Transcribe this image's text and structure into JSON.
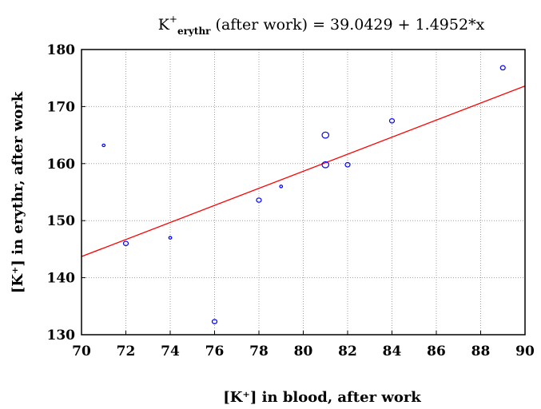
{
  "chart_data": {
    "type": "scatter",
    "title": {
      "main": "K",
      "sup": "+",
      "sub": "erythr",
      "rest": " (after work) = 39.0429 +  1.4952*x"
    },
    "xlabel": "[K⁺] in blood, after work",
    "ylabel": "[K⁺] in erythr, after work",
    "xlim": [
      70,
      90
    ],
    "ylim": [
      130,
      180
    ],
    "xticks": [
      "70",
      "72",
      "74",
      "76",
      "78",
      "80",
      "82",
      "84",
      "86",
      "88",
      "90"
    ],
    "yticks": [
      "130",
      "140",
      "150",
      "160",
      "170",
      "180"
    ],
    "grid": true,
    "regression": {
      "intercept": 39.0429,
      "slope": 1.4952
    },
    "points": [
      {
        "x": 71,
        "y": 163.2,
        "size": "small"
      },
      {
        "x": 72,
        "y": 146,
        "size": "medium"
      },
      {
        "x": 74,
        "y": 147,
        "size": "small"
      },
      {
        "x": 76,
        "y": 132.3,
        "size": "medium"
      },
      {
        "x": 78,
        "y": 153.6,
        "size": "medium"
      },
      {
        "x": 79,
        "y": 156,
        "size": "small"
      },
      {
        "x": 81,
        "y": 165,
        "size": "large"
      },
      {
        "x": 81,
        "y": 159.8,
        "size": "large"
      },
      {
        "x": 82,
        "y": 159.8,
        "size": "medium"
      },
      {
        "x": 84,
        "y": 167.5,
        "size": "medium"
      },
      {
        "x": 89,
        "y": 176.8,
        "size": "medium"
      }
    ],
    "colors": {
      "points": "#0000ff",
      "line": "#ff0000",
      "grid": "#a0a0a0",
      "axis": "#000000"
    }
  }
}
